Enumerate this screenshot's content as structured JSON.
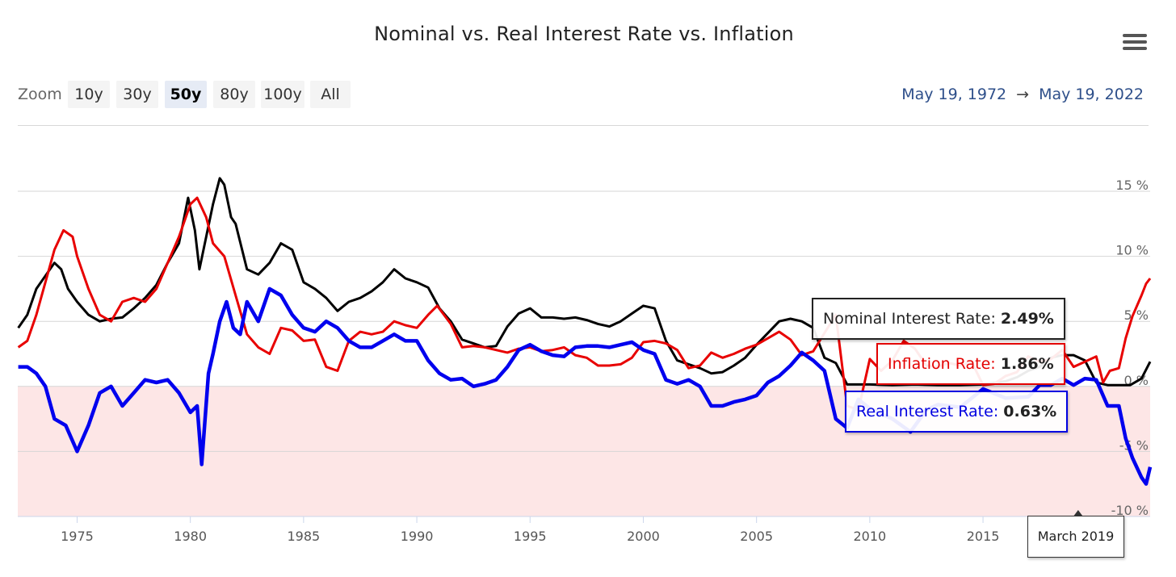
{
  "title": "Nominal vs. Real Interest Rate vs. Inflation",
  "toolbar": {
    "zoom_label": "Zoom",
    "zoom_buttons": [
      "10y",
      "30y",
      "50y",
      "80y",
      "100y",
      "All"
    ],
    "active_zoom": "50y",
    "range_start": "May 19, 1972",
    "range_arrow": "→",
    "range_end": "May 19, 2022"
  },
  "icons": {
    "menu": "hamburger-menu-icon"
  },
  "colors": {
    "nominal": "#000000",
    "inflation": "#e80000",
    "real": "#0000ee",
    "negative_band": "#fde6e6"
  },
  "tooltip": {
    "nominal_label": "Nominal Interest Rate:",
    "nominal_value": "2.49%",
    "inflation_label": "Inflation Rate:",
    "inflation_value": "1.86%",
    "real_label": "Real Interest Rate:",
    "real_value": "0.63%",
    "date": "March 2019"
  },
  "chart_data": {
    "type": "line",
    "title": "Nominal vs. Real Interest Rate vs. Inflation",
    "xlabel": "",
    "ylabel": "",
    "xlim": [
      1972.38,
      2022.38
    ],
    "ylim": [
      -10,
      15
    ],
    "x_ticks": [
      1975,
      1980,
      1985,
      1990,
      1995,
      2000,
      2005,
      2010,
      2015
    ],
    "y_ticks": [
      15,
      10,
      5,
      0,
      -5,
      -10
    ],
    "y_tick_labels": [
      "15 %",
      "10 %",
      "5 %",
      "0 %",
      "-5 %",
      "-10 %"
    ],
    "shaded_region": {
      "from": -10,
      "to": 0
    },
    "grid": "horizontal",
    "series": [
      {
        "name": "Nominal Interest Rate",
        "x": [
          1972.4,
          1972.8,
          1973.2,
          1973.6,
          1974,
          1974.3,
          1974.6,
          1975,
          1975.5,
          1976,
          1976.5,
          1977,
          1977.5,
          1978,
          1978.5,
          1979,
          1979.5,
          1979.9,
          1980.2,
          1980.4,
          1980.7,
          1981,
          1981.3,
          1981.5,
          1981.8,
          1982,
          1982.5,
          1983,
          1983.5,
          1984,
          1984.5,
          1985,
          1985.5,
          1986,
          1986.5,
          1987,
          1987.5,
          1988,
          1988.5,
          1989,
          1989.5,
          1990,
          1990.5,
          1991,
          1991.5,
          1992,
          1992.5,
          1993,
          1993.5,
          1994,
          1994.5,
          1995,
          1995.5,
          1996,
          1996.5,
          1997,
          1997.5,
          1998,
          1998.5,
          1999,
          1999.5,
          2000,
          2000.5,
          2001,
          2001.5,
          2002,
          2002.5,
          2003,
          2003.5,
          2004,
          2004.5,
          2005,
          2005.5,
          2006,
          2006.5,
          2007,
          2007.5,
          2008,
          2008.5,
          2009,
          2010,
          2011,
          2012,
          2013,
          2014,
          2015,
          2016,
          2016.5,
          2017,
          2017.5,
          2018,
          2018.5,
          2019,
          2019.5,
          2020,
          2020.5,
          2021,
          2021.5,
          2022,
          2022.38
        ],
        "y": [
          4.5,
          5.5,
          7.5,
          8.5,
          9.5,
          9.0,
          7.5,
          6.5,
          5.5,
          5.0,
          5.2,
          5.3,
          6.0,
          6.8,
          7.8,
          9.5,
          11.0,
          14.5,
          12.0,
          9.0,
          11.5,
          14.0,
          16.0,
          15.5,
          13.0,
          12.5,
          9.0,
          8.6,
          9.5,
          11.0,
          10.5,
          8.0,
          7.5,
          6.8,
          5.8,
          6.5,
          6.8,
          7.3,
          8.0,
          9.0,
          8.3,
          8.0,
          7.6,
          6.0,
          5.0,
          3.6,
          3.3,
          3.0,
          3.1,
          4.6,
          5.6,
          6.0,
          5.3,
          5.3,
          5.2,
          5.3,
          5.1,
          4.8,
          4.6,
          5.0,
          5.6,
          6.2,
          6.0,
          3.5,
          2.0,
          1.7,
          1.4,
          1.0,
          1.1,
          1.6,
          2.2,
          3.2,
          4.1,
          5.0,
          5.2,
          5.0,
          4.5,
          2.2,
          1.8,
          0.15,
          0.15,
          0.1,
          0.15,
          0.1,
          0.1,
          0.15,
          0.4,
          0.7,
          1.2,
          1.5,
          2.2,
          2.4,
          2.4,
          2.0,
          0.3,
          0.1,
          0.1,
          0.1,
          0.6,
          1.9
        ]
      },
      {
        "name": "Inflation Rate",
        "x": [
          1972.4,
          1972.8,
          1973.2,
          1973.6,
          1974,
          1974.4,
          1974.8,
          1975,
          1975.5,
          1976,
          1976.5,
          1977,
          1977.5,
          1978,
          1978.5,
          1979,
          1979.5,
          1980,
          1980.3,
          1980.7,
          1981,
          1981.5,
          1982,
          1982.5,
          1983,
          1983.5,
          1984,
          1984.5,
          1985,
          1985.5,
          1986,
          1986.5,
          1987,
          1987.5,
          1988,
          1988.5,
          1989,
          1989.5,
          1990,
          1990.5,
          1990.9,
          1991.5,
          1992,
          1992.5,
          1993,
          1993.5,
          1994,
          1994.5,
          1995,
          1995.5,
          1996,
          1996.5,
          1997,
          1997.5,
          1998,
          1998.5,
          1999,
          1999.5,
          2000,
          2000.5,
          2001,
          2001.5,
          2002,
          2002.5,
          2003,
          2003.5,
          2004,
          2004.5,
          2005,
          2005.5,
          2006,
          2006.5,
          2007,
          2007.5,
          2008,
          2008.5,
          2009,
          2009.5,
          2010,
          2010.5,
          2011,
          2011.5,
          2012,
          2012.5,
          2013,
          2013.5,
          2014,
          2014.5,
          2015,
          2015.5,
          2016,
          2016.5,
          2017,
          2017.5,
          2018,
          2018.5,
          2019,
          2019.5,
          2020,
          2020.3,
          2020.6,
          2021,
          2021.3,
          2021.6,
          2022,
          2022.2,
          2022.38
        ],
        "y": [
          3.0,
          3.5,
          5.5,
          8.0,
          10.5,
          12.0,
          11.5,
          10.0,
          7.5,
          5.5,
          5.0,
          6.5,
          6.8,
          6.5,
          7.5,
          9.5,
          11.5,
          14.0,
          14.5,
          13.0,
          11.0,
          10.0,
          7.0,
          4.0,
          3.0,
          2.5,
          4.5,
          4.3,
          3.5,
          3.6,
          1.5,
          1.2,
          3.5,
          4.2,
          4.0,
          4.2,
          5.0,
          4.7,
          4.5,
          5.5,
          6.2,
          4.8,
          3.0,
          3.1,
          3.0,
          2.8,
          2.6,
          2.9,
          3.0,
          2.7,
          2.8,
          3.0,
          2.4,
          2.2,
          1.6,
          1.6,
          1.7,
          2.2,
          3.4,
          3.5,
          3.3,
          2.8,
          1.4,
          1.6,
          2.6,
          2.2,
          2.5,
          2.9,
          3.2,
          3.7,
          4.2,
          3.6,
          2.4,
          2.7,
          4.1,
          5.5,
          -1.5,
          -1.8,
          2.1,
          1.2,
          2.0,
          3.5,
          2.9,
          1.6,
          1.5,
          1.8,
          1.6,
          1.9,
          0.1,
          0.2,
          0.8,
          1.1,
          2.3,
          1.9,
          2.1,
          2.8,
          1.5,
          1.9,
          2.3,
          0.3,
          1.2,
          1.4,
          3.7,
          5.4,
          7.0,
          7.9,
          8.3
        ]
      },
      {
        "name": "Real Interest Rate",
        "x": [
          1972.4,
          1972.8,
          1973.2,
          1973.6,
          1974,
          1974.5,
          1975,
          1975.5,
          1976,
          1976.5,
          1977,
          1977.5,
          1978,
          1978.5,
          1979,
          1979.5,
          1980,
          1980.3,
          1980.5,
          1980.8,
          1981,
          1981.3,
          1981.6,
          1981.9,
          1982.2,
          1982.5,
          1983,
          1983.5,
          1984,
          1984.5,
          1985,
          1985.5,
          1986,
          1986.5,
          1987,
          1987.5,
          1988,
          1988.5,
          1989,
          1989.5,
          1990,
          1990.5,
          1991,
          1991.5,
          1992,
          1992.5,
          1993,
          1993.5,
          1994,
          1994.5,
          1995,
          1995.5,
          1996,
          1996.5,
          1997,
          1997.5,
          1998,
          1998.5,
          1999,
          1999.5,
          2000,
          2000.5,
          2001,
          2001.5,
          2002,
          2002.5,
          2003,
          2003.5,
          2004,
          2004.5,
          2005,
          2005.5,
          2006,
          2006.5,
          2007,
          2007.5,
          2008,
          2008.5,
          2009,
          2009.5,
          2010,
          2011,
          2011.8,
          2012.5,
          2013,
          2014,
          2015,
          2016,
          2017,
          2017.5,
          2018,
          2018.5,
          2019,
          2019.5,
          2020,
          2020.5,
          2021,
          2021.3,
          2021.6,
          2022,
          2022.2,
          2022.38
        ],
        "y": [
          1.5,
          1.5,
          1.0,
          0.0,
          -2.5,
          -3.0,
          -5.0,
          -3.0,
          -0.5,
          0.0,
          -1.5,
          -0.5,
          0.5,
          0.3,
          0.5,
          -0.5,
          -2.0,
          -1.5,
          -6.0,
          1.0,
          2.5,
          5.0,
          6.5,
          4.5,
          4.0,
          6.5,
          5.0,
          7.5,
          7.0,
          5.5,
          4.5,
          4.2,
          5.0,
          4.5,
          3.5,
          3.0,
          3.0,
          3.5,
          4.0,
          3.5,
          3.5,
          2.0,
          1.0,
          0.5,
          0.6,
          0.0,
          0.2,
          0.5,
          1.5,
          2.8,
          3.2,
          2.7,
          2.4,
          2.3,
          3.0,
          3.1,
          3.1,
          3.0,
          3.2,
          3.4,
          2.8,
          2.5,
          0.5,
          0.2,
          0.5,
          0.0,
          -1.5,
          -1.5,
          -1.2,
          -1.0,
          -0.7,
          0.3,
          0.8,
          1.6,
          2.6,
          2.0,
          1.2,
          -2.5,
          -3.2,
          -1.0,
          -1.7,
          -2.5,
          -3.5,
          -1.8,
          -1.4,
          -1.6,
          -0.2,
          -0.9,
          -0.8,
          0.1,
          0.1,
          0.6,
          0.1,
          0.6,
          0.5,
          -1.5,
          -1.5,
          -4.0,
          -5.5,
          -7.0,
          -7.5,
          -6.2
        ]
      }
    ],
    "hover_marker_x": 2019.2
  }
}
